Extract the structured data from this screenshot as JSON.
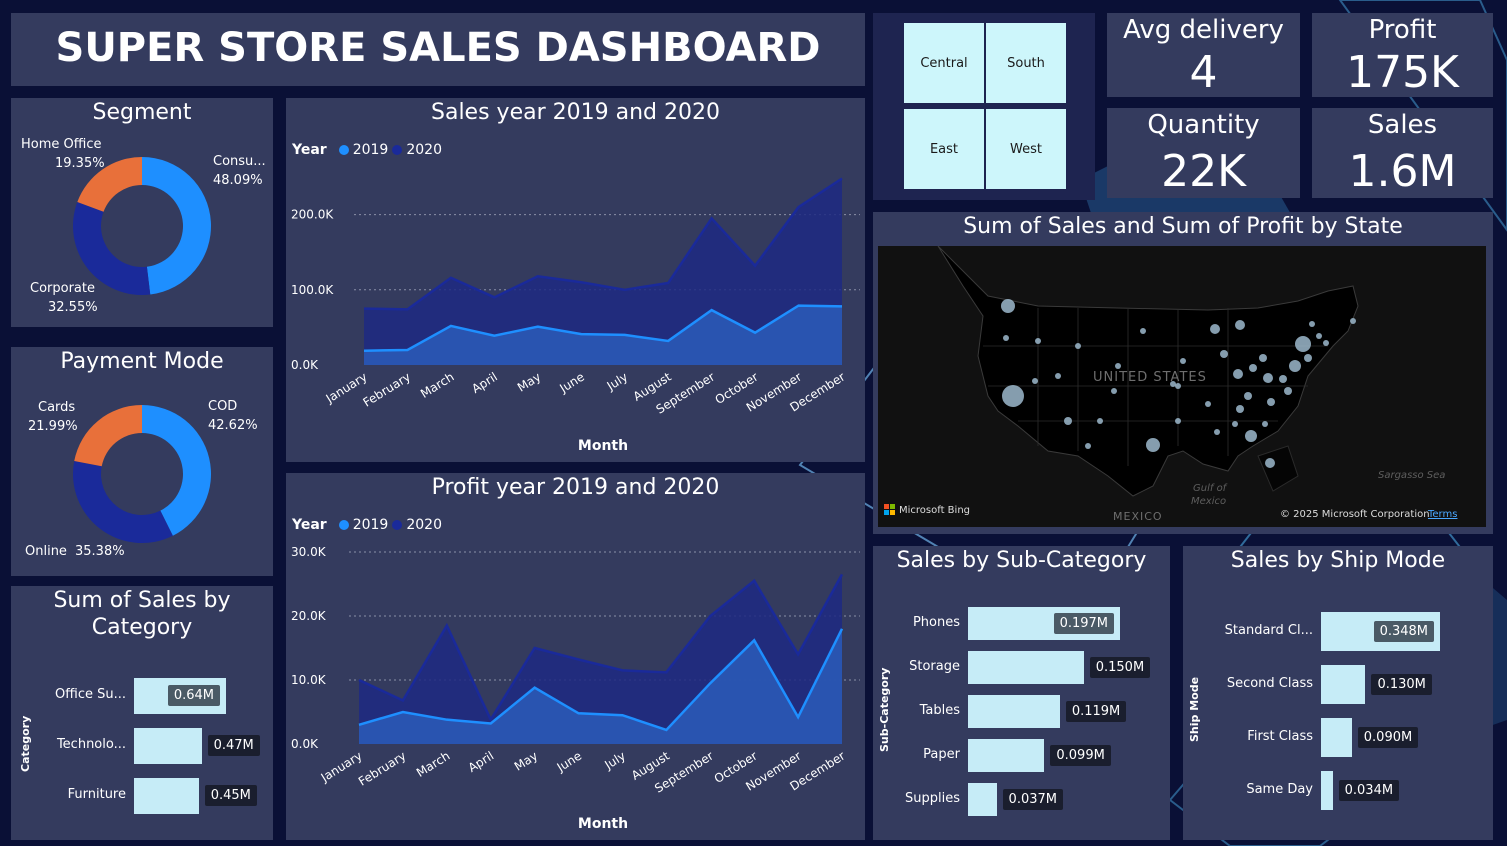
{
  "colors": {
    "bg": "#0a1036",
    "panel": "#343b5e",
    "s2019": "#1e8fff",
    "s2020": "#1a2a9a",
    "orange": "#e8703a",
    "bar": "#c6ecf7"
  },
  "header": {
    "title": "SUPER STORE SALES DASHBOARD"
  },
  "segment": {
    "title": "Segment",
    "chart_data": {
      "type": "pie",
      "labels": [
        "Consu...",
        "Corporate",
        "Home Office"
      ],
      "values": [
        48.09,
        32.55,
        19.35
      ],
      "display": [
        "48.09%",
        "32.55%",
        "19.35%"
      ],
      "colors": [
        "#1e8fff",
        "#1a2a9a",
        "#e8703a"
      ]
    }
  },
  "payment": {
    "title": "Payment Mode",
    "chart_data": {
      "type": "pie",
      "labels": [
        "COD",
        "Online",
        "Cards"
      ],
      "values": [
        42.62,
        35.38,
        21.99
      ],
      "display": [
        "42.62%",
        "35.38%",
        "21.99%"
      ],
      "colors": [
        "#1e8fff",
        "#1a2a9a",
        "#e8703a"
      ]
    }
  },
  "category": {
    "title_line1": "Sum of Sales by",
    "title_line2": "Category",
    "axis_label": "Category",
    "chart_data": {
      "type": "bar",
      "categories": [
        "Office Su...",
        "Technolo...",
        "Furniture"
      ],
      "values": [
        0.64,
        0.47,
        0.45
      ],
      "display": [
        "0.64M",
        "0.47M",
        "0.45M"
      ]
    }
  },
  "sales_year": {
    "title": "Sales year 2019 and 2020",
    "legend_title": "Year",
    "xlabel": "Month",
    "chart_data": {
      "type": "area",
      "categories": [
        "January",
        "February",
        "March",
        "April",
        "May",
        "June",
        "July",
        "August",
        "September",
        "October",
        "November",
        "December"
      ],
      "ylim": [
        0,
        250000
      ],
      "yticks": [
        "0.0K",
        "100.0K",
        "200.0K"
      ],
      "ytick_values": [
        0,
        100000,
        200000
      ],
      "series": [
        {
          "name": "2019",
          "values": [
            19000,
            20000,
            52000,
            39000,
            51000,
            41000,
            40000,
            32000,
            73000,
            43000,
            79000,
            78000
          ]
        },
        {
          "name": "2020",
          "values": [
            75000,
            74000,
            116000,
            90000,
            118000,
            110000,
            100000,
            109000,
            195000,
            132000,
            210000,
            248000
          ]
        }
      ]
    }
  },
  "profit_year": {
    "title": "Profit year 2019 and 2020",
    "legend_title": "Year",
    "xlabel": "Month",
    "chart_data": {
      "type": "area",
      "categories": [
        "January",
        "February",
        "March",
        "April",
        "May",
        "June",
        "July",
        "August",
        "September",
        "October",
        "November",
        "December"
      ],
      "ylim": [
        0,
        30000
      ],
      "yticks": [
        "0.0K",
        "10.0K",
        "20.0K",
        "30.0K"
      ],
      "ytick_values": [
        0,
        10000,
        20000,
        30000
      ],
      "series": [
        {
          "name": "2019",
          "values": [
            3000,
            5000,
            3800,
            3200,
            8800,
            4800,
            4500,
            2200,
            9500,
            16200,
            4200,
            18000
          ]
        },
        {
          "name": "2020",
          "values": [
            10000,
            6800,
            18500,
            3800,
            15000,
            13200,
            11500,
            11200,
            20000,
            25500,
            14000,
            26500
          ]
        }
      ]
    }
  },
  "region_slicer": {
    "items": [
      "Central",
      "South",
      "East",
      "West"
    ]
  },
  "kpis": [
    {
      "title": "Avg delivery",
      "value": "4"
    },
    {
      "title": "Profit",
      "value": "175K"
    },
    {
      "title": "Quantity",
      "value": "22K"
    },
    {
      "title": "Sales",
      "value": "1.6M"
    }
  ],
  "map": {
    "title": "Sum of Sales and Sum of Profit by State",
    "country_label": "UNITED STATES",
    "mexico_label": "MEXICO",
    "gulf_label_1": "Gulf of",
    "gulf_label_2": "Mexico",
    "sea_label": "Sargasso Sea",
    "bing": "Microsoft Bing",
    "copyright": "© 2025 Microsoft Corporation",
    "terms": "Terms"
  },
  "subcategory": {
    "title": "Sales by Sub-Category",
    "axis_label": "Sub-Category",
    "chart_data": {
      "type": "bar",
      "categories": [
        "Phones",
        "Storage",
        "Tables",
        "Paper",
        "Supplies"
      ],
      "values": [
        0.197,
        0.15,
        0.119,
        0.099,
        0.037
      ],
      "display": [
        "0.197M",
        "0.150M",
        "0.119M",
        "0.099M",
        "0.037M"
      ]
    }
  },
  "shipmode": {
    "title": "Sales by Ship Mode",
    "axis_label": "Ship Mode",
    "chart_data": {
      "type": "bar",
      "categories": [
        "Standard Cl...",
        "Second Class",
        "First Class",
        "Same Day"
      ],
      "values": [
        0.348,
        0.13,
        0.09,
        0.034
      ],
      "display": [
        "0.348M",
        "0.130M",
        "0.090M",
        "0.034M"
      ]
    }
  }
}
